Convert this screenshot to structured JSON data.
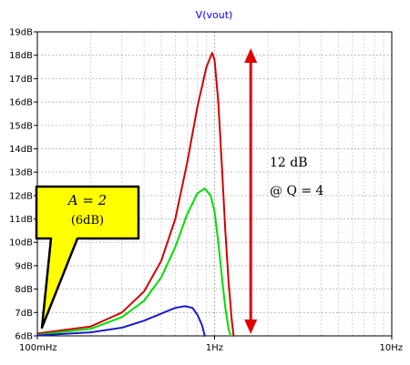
{
  "chart_data": {
    "type": "line",
    "title": "V(vout)",
    "x_scale": "log",
    "xlim": [
      "100mHz",
      "10Hz"
    ],
    "x_values_hz": [
      0.1,
      10
    ],
    "ylim": [
      6,
      19
    ],
    "y_unit": "dB",
    "grid": true,
    "y_ticks": [
      "6dB",
      "7dB",
      "8dB",
      "9dB",
      "10dB",
      "11dB",
      "12dB",
      "13dB",
      "14dB",
      "15dB",
      "16dB",
      "17dB",
      "18dB",
      "19dB"
    ],
    "x_ticks": [
      {
        "label": "100mHz",
        "value": 0.1
      },
      {
        "label": "1Hz",
        "value": 1
      },
      {
        "label": "10Hz",
        "value": 10
      }
    ],
    "series": [
      {
        "color": "#d40000",
        "points": [
          [
            0.1,
            6.1
          ],
          [
            0.2,
            6.4
          ],
          [
            0.3,
            7.0
          ],
          [
            0.4,
            7.9
          ],
          [
            0.5,
            9.2
          ],
          [
            0.6,
            11.0
          ],
          [
            0.7,
            13.4
          ],
          [
            0.8,
            15.8
          ],
          [
            0.9,
            17.5
          ],
          [
            0.97,
            18.1
          ],
          [
            1.0,
            17.8
          ],
          [
            1.05,
            16.0
          ],
          [
            1.1,
            13.2
          ],
          [
            1.15,
            10.5
          ],
          [
            1.2,
            8.3
          ],
          [
            1.25,
            6.7
          ],
          [
            1.28,
            6.0
          ]
        ]
      },
      {
        "color": "#00dd00",
        "points": [
          [
            0.1,
            6.05
          ],
          [
            0.2,
            6.3
          ],
          [
            0.3,
            6.8
          ],
          [
            0.4,
            7.5
          ],
          [
            0.5,
            8.5
          ],
          [
            0.6,
            9.8
          ],
          [
            0.7,
            11.2
          ],
          [
            0.8,
            12.1
          ],
          [
            0.88,
            12.3
          ],
          [
            0.95,
            12.0
          ],
          [
            1.0,
            11.3
          ],
          [
            1.05,
            10.0
          ],
          [
            1.1,
            8.5
          ],
          [
            1.15,
            7.2
          ],
          [
            1.2,
            6.3
          ],
          [
            1.23,
            6.0
          ]
        ]
      },
      {
        "color": "#1a1acc",
        "points": [
          [
            0.1,
            6.02
          ],
          [
            0.2,
            6.15
          ],
          [
            0.3,
            6.35
          ],
          [
            0.4,
            6.65
          ],
          [
            0.5,
            6.95
          ],
          [
            0.6,
            7.2
          ],
          [
            0.68,
            7.27
          ],
          [
            0.75,
            7.2
          ],
          [
            0.8,
            6.9
          ],
          [
            0.85,
            6.45
          ],
          [
            0.88,
            6.0
          ]
        ]
      }
    ],
    "annotations": {
      "span_label_1": "12 dB",
      "span_label_2": "@ Q = 4",
      "span_from_db": 6,
      "span_to_db": 18.3,
      "span_at_hz": 1.6,
      "callout_line_1": "A = 2",
      "callout_line_2": "(6dB)",
      "callout_color": "#ffff00"
    }
  }
}
